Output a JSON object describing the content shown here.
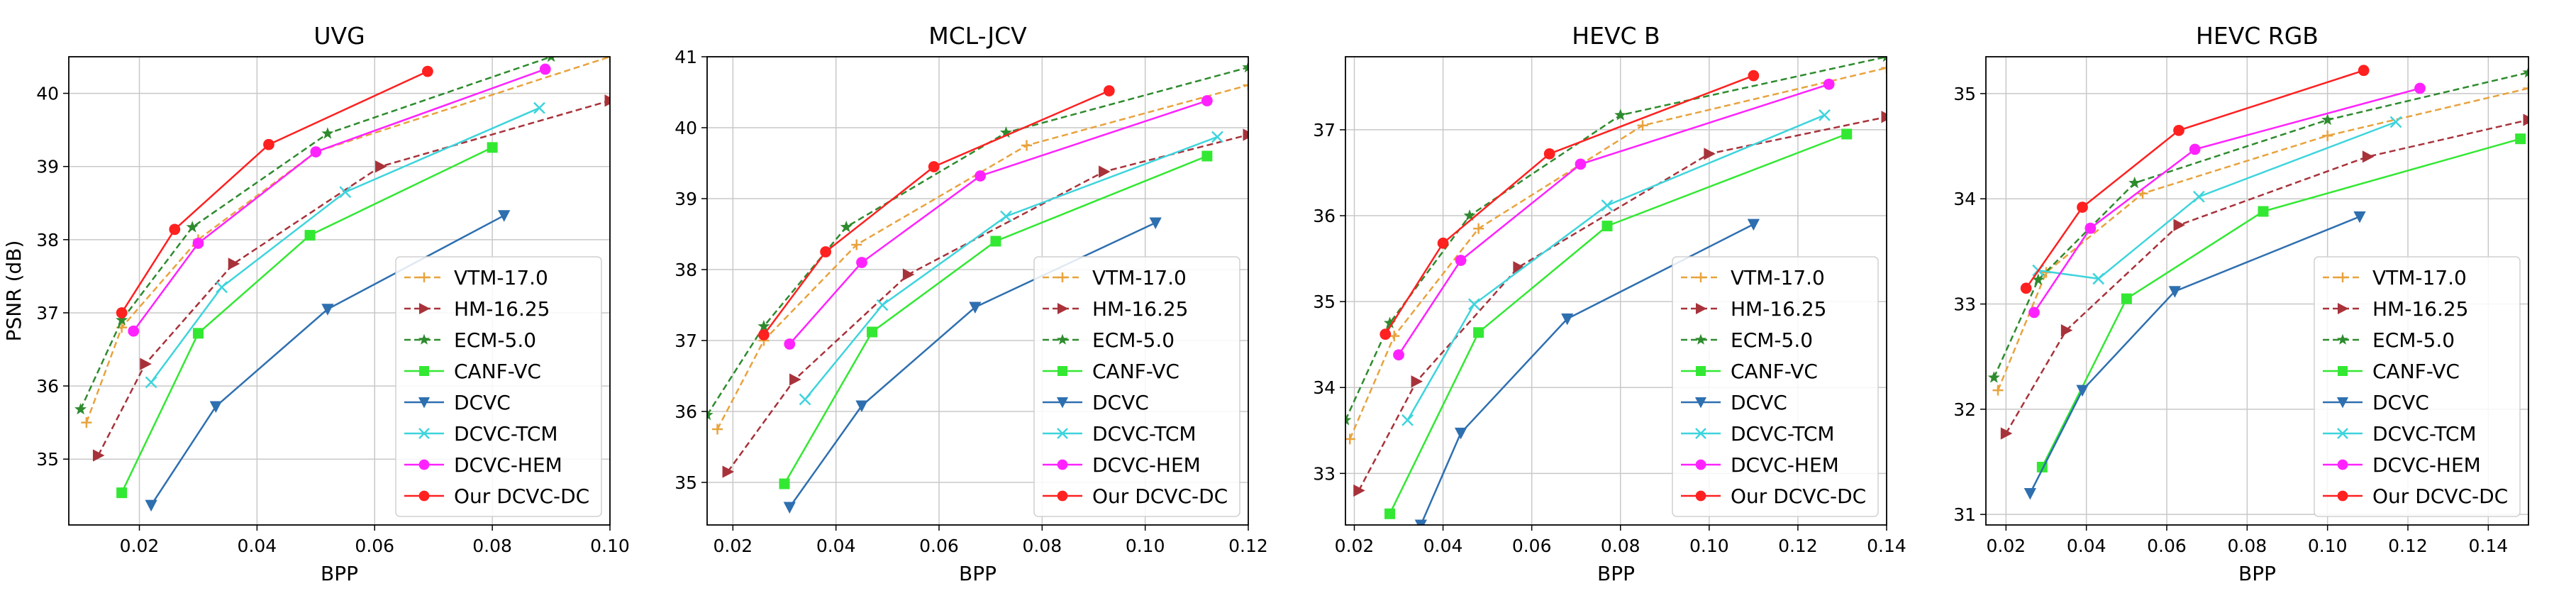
{
  "chart_data": [
    {
      "type": "line",
      "title": "UVG",
      "xlabel": "BPP",
      "ylabel": "PSNR (dB)",
      "xlim": [
        0.008,
        0.1
      ],
      "ylim": [
        34.1,
        40.5
      ],
      "xticks": [
        0.02,
        0.04,
        0.06,
        0.08,
        0.1
      ],
      "xtick_labels": [
        "0.02",
        "0.04",
        "0.06",
        "0.08",
        "0.10"
      ],
      "yticks": [
        35,
        36,
        37,
        38,
        39,
        40
      ],
      "ytick_labels": [
        "35",
        "36",
        "37",
        "38",
        "39",
        "40"
      ],
      "grid": true,
      "legend_position": "lower-right",
      "series": [
        {
          "name": "VTM-17.0",
          "x": [
            0.011,
            0.017,
            0.03,
            0.05,
            0.1
          ],
          "y": [
            35.5,
            36.8,
            38.0,
            39.2,
            40.5
          ]
        },
        {
          "name": "HM-16.25",
          "x": [
            0.013,
            0.021,
            0.036,
            0.061,
            0.1
          ],
          "y": [
            35.05,
            36.3,
            37.67,
            39.0,
            39.9
          ]
        },
        {
          "name": "ECM-5.0",
          "x": [
            0.01,
            0.017,
            0.029,
            0.052,
            0.09
          ],
          "y": [
            35.68,
            36.9,
            38.17,
            39.45,
            40.5
          ]
        },
        {
          "name": "CANF-VC",
          "x": [
            0.017,
            0.03,
            0.049,
            0.08
          ],
          "y": [
            34.54,
            36.72,
            38.06,
            39.26
          ]
        },
        {
          "name": "DCVC",
          "x": [
            0.022,
            0.033,
            0.052,
            0.082
          ],
          "y": [
            34.37,
            35.72,
            37.05,
            38.33
          ]
        },
        {
          "name": "DCVC-TCM",
          "x": [
            0.022,
            0.034,
            0.055,
            0.088
          ],
          "y": [
            36.05,
            37.35,
            38.65,
            39.8
          ]
        },
        {
          "name": "DCVC-HEM",
          "x": [
            0.019,
            0.03,
            0.05,
            0.089
          ],
          "y": [
            36.75,
            37.95,
            39.2,
            40.33
          ]
        },
        {
          "name": "Our DCVC-DC",
          "x": [
            0.017,
            0.026,
            0.042,
            0.069
          ],
          "y": [
            37.0,
            38.14,
            39.3,
            40.3
          ]
        }
      ]
    },
    {
      "type": "line",
      "title": "MCL-JCV",
      "xlabel": "BPP",
      "ylabel": "",
      "xlim": [
        0.015,
        0.12
      ],
      "ylim": [
        34.4,
        41.0
      ],
      "xticks": [
        0.02,
        0.04,
        0.06,
        0.08,
        0.1,
        0.12
      ],
      "xtick_labels": [
        "0.02",
        "0.04",
        "0.06",
        "0.08",
        "0.10",
        "0.12"
      ],
      "yticks": [
        35,
        36,
        37,
        38,
        39,
        40,
        41
      ],
      "ytick_labels": [
        "35",
        "36",
        "37",
        "38",
        "39",
        "40",
        "41"
      ],
      "grid": true,
      "legend_position": "lower-right",
      "series": [
        {
          "name": "VTM-17.0",
          "x": [
            0.017,
            0.026,
            0.044,
            0.077,
            0.12
          ],
          "y": [
            35.75,
            37.0,
            38.35,
            39.75,
            40.6
          ]
        },
        {
          "name": "HM-16.25",
          "x": [
            0.019,
            0.032,
            0.054,
            0.092,
            0.12
          ],
          "y": [
            35.15,
            36.45,
            37.93,
            39.38,
            39.9
          ]
        },
        {
          "name": "ECM-5.0",
          "x": [
            0.015,
            0.026,
            0.042,
            0.073,
            0.12
          ],
          "y": [
            35.95,
            37.2,
            38.6,
            39.93,
            40.85
          ]
        },
        {
          "name": "CANF-VC",
          "x": [
            0.03,
            0.047,
            0.071,
            0.112
          ],
          "y": [
            34.98,
            37.12,
            38.4,
            39.6
          ]
        },
        {
          "name": "DCVC",
          "x": [
            0.031,
            0.045,
            0.067,
            0.102
          ],
          "y": [
            34.65,
            36.08,
            37.47,
            38.66
          ]
        },
        {
          "name": "DCVC-TCM",
          "x": [
            0.034,
            0.049,
            0.073,
            0.114
          ],
          "y": [
            36.17,
            37.5,
            38.75,
            39.87
          ]
        },
        {
          "name": "DCVC-HEM",
          "x": [
            0.031,
            0.045,
            0.068,
            0.112
          ],
          "y": [
            36.95,
            38.1,
            39.32,
            40.38
          ]
        },
        {
          "name": "Our DCVC-DC",
          "x": [
            0.026,
            0.038,
            0.059,
            0.093
          ],
          "y": [
            37.08,
            38.25,
            39.45,
            40.52
          ]
        }
      ]
    },
    {
      "type": "line",
      "title": "HEVC B",
      "xlabel": "BPP",
      "ylabel": "",
      "xlim": [
        0.018,
        0.14
      ],
      "ylim": [
        32.4,
        37.85
      ],
      "xticks": [
        0.02,
        0.04,
        0.06,
        0.08,
        0.1,
        0.12,
        0.14
      ],
      "xtick_labels": [
        "0.02",
        "0.04",
        "0.06",
        "0.08",
        "0.10",
        "0.12",
        "0.14"
      ],
      "yticks": [
        33,
        34,
        35,
        36,
        37
      ],
      "ytick_labels": [
        "33",
        "34",
        "35",
        "36",
        "37"
      ],
      "grid": true,
      "legend_position": "lower-right",
      "series": [
        {
          "name": "VTM-17.0",
          "x": [
            0.019,
            0.029,
            0.048,
            0.085,
            0.14
          ],
          "y": [
            33.4,
            34.6,
            35.85,
            37.05,
            37.72
          ]
        },
        {
          "name": "HM-16.25",
          "x": [
            0.021,
            0.034,
            0.057,
            0.1,
            0.14
          ],
          "y": [
            32.8,
            34.07,
            35.4,
            36.72,
            37.15
          ]
        },
        {
          "name": "ECM-5.0",
          "x": [
            0.018,
            0.028,
            0.046,
            0.08,
            0.14
          ],
          "y": [
            33.62,
            34.75,
            36.0,
            37.17,
            37.85
          ]
        },
        {
          "name": "CANF-VC",
          "x": [
            0.028,
            0.048,
            0.077,
            0.131
          ],
          "y": [
            32.53,
            34.64,
            35.88,
            36.95
          ]
        },
        {
          "name": "DCVC",
          "x": [
            0.035,
            0.044,
            0.068,
            0.11
          ],
          "y": [
            32.4,
            33.47,
            34.8,
            35.9
          ]
        },
        {
          "name": "DCVC-TCM",
          "x": [
            0.032,
            0.047,
            0.077,
            0.126
          ],
          "y": [
            33.62,
            34.97,
            36.12,
            37.17
          ]
        },
        {
          "name": "DCVC-HEM",
          "x": [
            0.03,
            0.044,
            0.071,
            0.127
          ],
          "y": [
            34.38,
            35.48,
            36.6,
            37.53
          ]
        },
        {
          "name": "Our DCVC-DC",
          "x": [
            0.027,
            0.04,
            0.064,
            0.11
          ],
          "y": [
            34.62,
            35.68,
            36.72,
            37.63
          ]
        }
      ]
    },
    {
      "type": "line",
      "title": "HEVC RGB",
      "xlabel": "BPP",
      "ylabel": "",
      "xlim": [
        0.015,
        0.15
      ],
      "ylim": [
        30.9,
        35.35
      ],
      "xticks": [
        0.02,
        0.04,
        0.06,
        0.08,
        0.1,
        0.12,
        0.14
      ],
      "xtick_labels": [
        "0.02",
        "0.04",
        "0.06",
        "0.08",
        "0.10",
        "0.12",
        "0.14"
      ],
      "yticks": [
        31,
        32,
        33,
        34,
        35
      ],
      "ytick_labels": [
        "31",
        "32",
        "33",
        "34",
        "35"
      ],
      "grid": true,
      "legend_position": "lower-right",
      "series": [
        {
          "name": "VTM-17.0",
          "x": [
            0.018,
            0.03,
            0.054,
            0.1,
            0.15
          ],
          "y": [
            32.18,
            33.3,
            34.05,
            34.6,
            35.05
          ]
        },
        {
          "name": "HM-16.25",
          "x": [
            0.02,
            0.035,
            0.063,
            0.11,
            0.15
          ],
          "y": [
            31.77,
            32.75,
            33.75,
            34.4,
            34.75
          ]
        },
        {
          "name": "ECM-5.0",
          "x": [
            0.017,
            0.028,
            0.052,
            0.1,
            0.15
          ],
          "y": [
            32.3,
            33.23,
            34.15,
            34.75,
            35.2
          ]
        },
        {
          "name": "CANF-VC",
          "x": [
            0.029,
            0.05,
            0.084,
            0.148
          ],
          "y": [
            31.45,
            33.05,
            33.88,
            34.57
          ]
        },
        {
          "name": "DCVC",
          "x": [
            0.026,
            0.039,
            0.062,
            0.108
          ],
          "y": [
            31.2,
            32.18,
            33.12,
            33.83
          ]
        },
        {
          "name": "DCVC-TCM",
          "x": [
            0.028,
            0.043,
            0.068,
            0.117
          ],
          "y": [
            33.32,
            33.24,
            34.02,
            34.73
          ]
        },
        {
          "name": "DCVC-HEM",
          "x": [
            0.027,
            0.041,
            0.067,
            0.123
          ],
          "y": [
            32.92,
            33.72,
            34.47,
            35.05
          ]
        },
        {
          "name": "Our DCVC-DC",
          "x": [
            0.025,
            0.039,
            0.063,
            0.109
          ],
          "y": [
            33.15,
            33.92,
            34.65,
            35.22
          ]
        }
      ]
    }
  ],
  "legend": {
    "entries": [
      {
        "label": "VTM-17.0",
        "color": "#e8a33d",
        "marker": "plus",
        "dashed": true
      },
      {
        "label": "HM-16.25",
        "color": "#a8323a",
        "marker": "triangle-right",
        "dashed": true
      },
      {
        "label": "ECM-5.0",
        "color": "#2e8b2e",
        "marker": "star",
        "dashed": true
      },
      {
        "label": "CANF-VC",
        "color": "#33e833",
        "marker": "square",
        "dashed": false
      },
      {
        "label": "DCVC",
        "color": "#2e6fb0",
        "marker": "triangle-down",
        "dashed": false
      },
      {
        "label": "DCVC-TCM",
        "color": "#3ed4dc",
        "marker": "x",
        "dashed": false
      },
      {
        "label": "DCVC-HEM",
        "color": "#ff22ff",
        "marker": "circle",
        "dashed": false
      },
      {
        "label": "Our DCVC-DC",
        "color": "#ff2020",
        "marker": "circle",
        "dashed": false
      }
    ]
  }
}
